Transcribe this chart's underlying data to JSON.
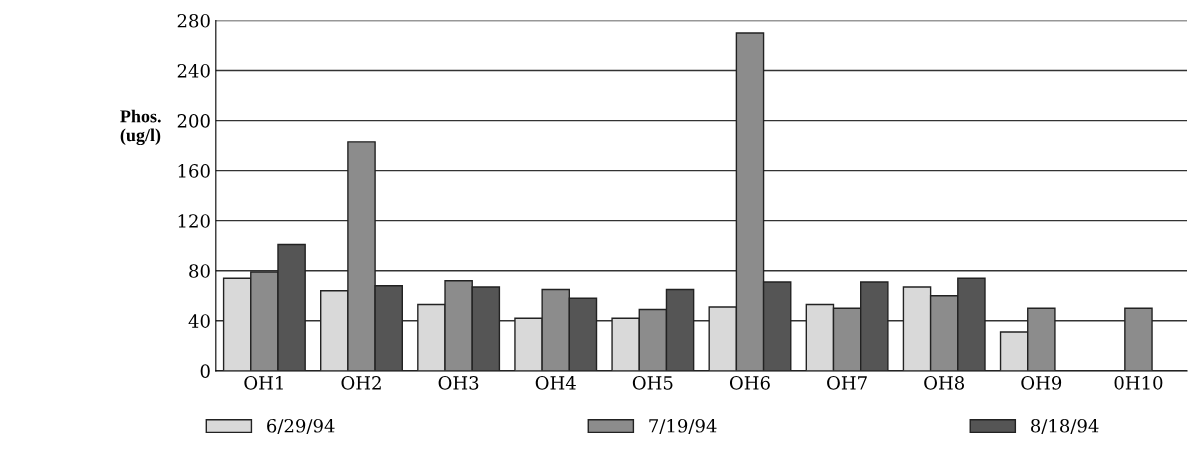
{
  "chart_data": {
    "type": "bar",
    "ylabel": "Phos.\n(ug/l)",
    "categories": [
      "OH1",
      "OH2",
      "OH3",
      "OH4",
      "OH5",
      "OH6",
      "OH7",
      "OH8",
      "OH9",
      "0H10"
    ],
    "series": [
      {
        "name": "6/29/94",
        "color": "#d9d9d9",
        "values": [
          74,
          64,
          53,
          42,
          42,
          51,
          53,
          67,
          31,
          null
        ]
      },
      {
        "name": "7/19/94",
        "color": "#8c8c8c",
        "values": [
          79,
          183,
          72,
          65,
          49,
          270,
          50,
          60,
          50,
          50
        ]
      },
      {
        "name": "8/18/94",
        "color": "#555555",
        "values": [
          101,
          68,
          67,
          58,
          65,
          71,
          71,
          74,
          null,
          null
        ]
      }
    ],
    "ylim": [
      0,
      280
    ],
    "yticks": [
      0,
      40,
      80,
      120,
      160,
      200,
      240,
      280
    ],
    "grid": "y",
    "legend": "bottom"
  }
}
